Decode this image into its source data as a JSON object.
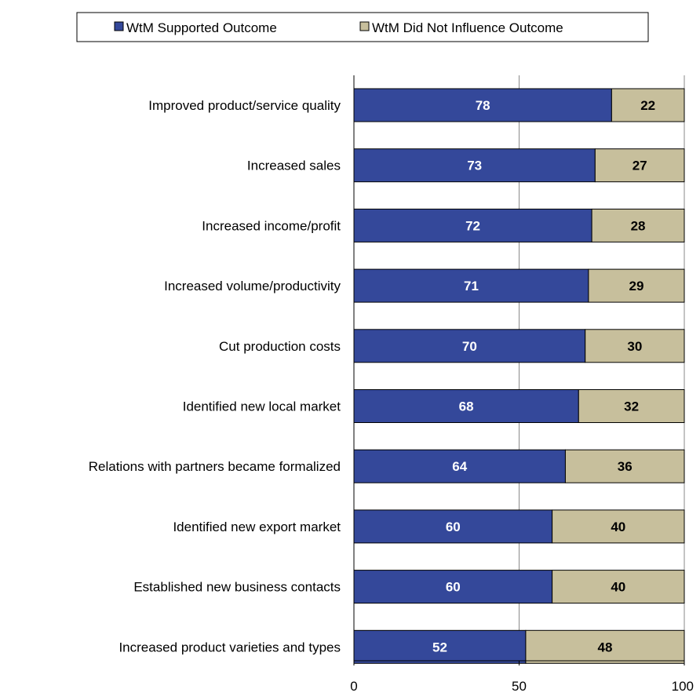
{
  "chart_data": {
    "type": "bar",
    "orientation": "horizontal",
    "stacked": true,
    "categories": [
      "Improved product/service quality",
      "Increased sales",
      "Increased income/profit",
      "Increased volume/productivity",
      "Cut production costs",
      "Identified new local market",
      "Relations with partners became formalized",
      "Identified new export market",
      "Established new business contacts",
      "Increased product varieties and types"
    ],
    "series": [
      {
        "name": "WtM Supported Outcome",
        "color": "#34489a",
        "values": [
          78,
          73,
          72,
          71,
          70,
          68,
          64,
          60,
          60,
          52
        ]
      },
      {
        "name": "WtM Did Not Influence Outcome",
        "color": "#c7bf9c",
        "values": [
          22,
          27,
          28,
          29,
          30,
          32,
          36,
          40,
          40,
          48
        ]
      }
    ],
    "xlim": [
      0,
      100
    ],
    "xticks": [
      "0",
      "50",
      "100"
    ],
    "legend_position": "top",
    "grid": "vertical",
    "title": "",
    "xlabel": "",
    "ylabel": ""
  }
}
